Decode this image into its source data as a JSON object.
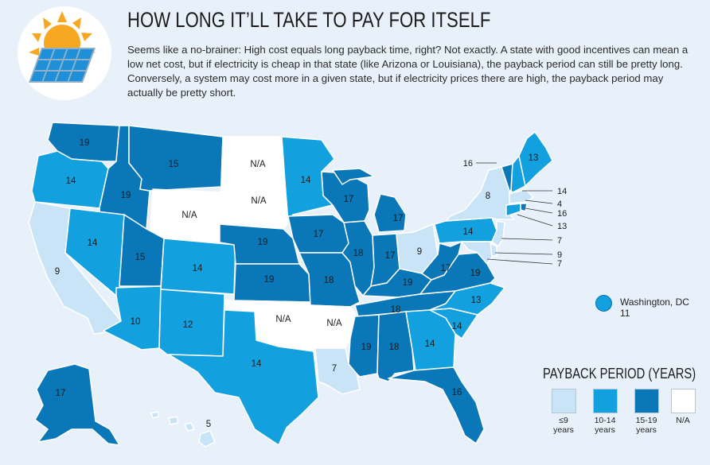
{
  "title": "HOW LONG IT’LL TAKE TO PAY FOR ITSELF",
  "intro": "Seems like a no-brainer: High cost equals long payback time, right? Not exactly. A state with good incentives can mean a low net cost, but if electricity is cheap in that state (like Arizona or Louisiana), the payback period can still be pretty long. Conversely, a system may cost more in a given state, but if electricity prices there are high, the payback period may actually be pretty short.",
  "colors": {
    "le9": "#c8e4f6",
    "10to14": "#12a0de",
    "15to19": "#0a77b8",
    "na": "#ffffff",
    "border": "#ffffff",
    "background": "#e8f1fa"
  },
  "legend": {
    "title": "PAYBACK PERIOD (YEARS)",
    "items": [
      {
        "key": "le9",
        "label_line1": "≤9",
        "label_line2": "years"
      },
      {
        "key": "10to14",
        "label_line1": "10-14",
        "label_line2": "years"
      },
      {
        "key": "15to19",
        "label_line1": "15-19",
        "label_line2": "years"
      },
      {
        "key": "na",
        "label_line1": "N/A",
        "label_line2": ""
      }
    ]
  },
  "dc": {
    "name": "Washington, DC",
    "value": "11",
    "category": "10to14"
  },
  "states": [
    {
      "code": "WA",
      "value": "19",
      "category": "15to19"
    },
    {
      "code": "OR",
      "value": "14",
      "category": "10to14"
    },
    {
      "code": "CA",
      "value": "9",
      "category": "le9"
    },
    {
      "code": "ID",
      "value": "19",
      "category": "15to19"
    },
    {
      "code": "NV",
      "value": "14",
      "category": "10to14"
    },
    {
      "code": "MT",
      "value": "15",
      "category": "15to19"
    },
    {
      "code": "WY",
      "value": "N/A",
      "category": "na"
    },
    {
      "code": "UT",
      "value": "15",
      "category": "15to19"
    },
    {
      "code": "AZ",
      "value": "10",
      "category": "10to14"
    },
    {
      "code": "CO",
      "value": "14",
      "category": "10to14"
    },
    {
      "code": "NM",
      "value": "12",
      "category": "10to14"
    },
    {
      "code": "ND",
      "value": "N/A",
      "category": "na"
    },
    {
      "code": "SD",
      "value": "N/A",
      "category": "na"
    },
    {
      "code": "NE",
      "value": "19",
      "category": "15to19"
    },
    {
      "code": "KS",
      "value": "19",
      "category": "15to19"
    },
    {
      "code": "OK",
      "value": "N/A",
      "category": "na"
    },
    {
      "code": "TX",
      "value": "14",
      "category": "10to14"
    },
    {
      "code": "MN",
      "value": "14",
      "category": "10to14"
    },
    {
      "code": "IA",
      "value": "17",
      "category": "15to19"
    },
    {
      "code": "MO",
      "value": "18",
      "category": "15to19"
    },
    {
      "code": "AR",
      "value": "N/A",
      "category": "na"
    },
    {
      "code": "LA",
      "value": "7",
      "category": "le9"
    },
    {
      "code": "WI",
      "value": "17",
      "category": "15to19"
    },
    {
      "code": "IL",
      "value": "18",
      "category": "15to19"
    },
    {
      "code": "MI",
      "value": "17",
      "category": "15to19"
    },
    {
      "code": "IN",
      "value": "17",
      "category": "15to19"
    },
    {
      "code": "OH",
      "value": "9",
      "category": "le9"
    },
    {
      "code": "KY",
      "value": "19",
      "category": "15to19"
    },
    {
      "code": "TN",
      "value": "18",
      "category": "15to19"
    },
    {
      "code": "MS",
      "value": "19",
      "category": "15to19"
    },
    {
      "code": "AL",
      "value": "18",
      "category": "15to19"
    },
    {
      "code": "GA",
      "value": "14",
      "category": "10to14"
    },
    {
      "code": "FL",
      "value": "16",
      "category": "15to19"
    },
    {
      "code": "SC",
      "value": "14",
      "category": "10to14"
    },
    {
      "code": "NC",
      "value": "13",
      "category": "10to14"
    },
    {
      "code": "VA",
      "value": "19",
      "category": "15to19"
    },
    {
      "code": "WV",
      "value": "17",
      "category": "15to19"
    },
    {
      "code": "PA",
      "value": "14",
      "category": "10to14"
    },
    {
      "code": "NY",
      "value": "8",
      "category": "le9"
    },
    {
      "code": "VT",
      "value": "16",
      "category": "15to19"
    },
    {
      "code": "NH",
      "value": "14",
      "category": "10to14"
    },
    {
      "code": "ME",
      "value": "13",
      "category": "10to14"
    },
    {
      "code": "MA",
      "value": "4",
      "category": "le9"
    },
    {
      "code": "RI",
      "value": "16",
      "category": "15to19"
    },
    {
      "code": "CT",
      "value": "13",
      "category": "10to14"
    },
    {
      "code": "NJ",
      "value": "7",
      "category": "le9"
    },
    {
      "code": "DE",
      "value": "9",
      "category": "le9"
    },
    {
      "code": "MD",
      "value": "7",
      "category": "le9"
    },
    {
      "code": "AK",
      "value": "17",
      "category": "15to19"
    },
    {
      "code": "HI",
      "value": "5",
      "category": "le9"
    }
  ]
}
